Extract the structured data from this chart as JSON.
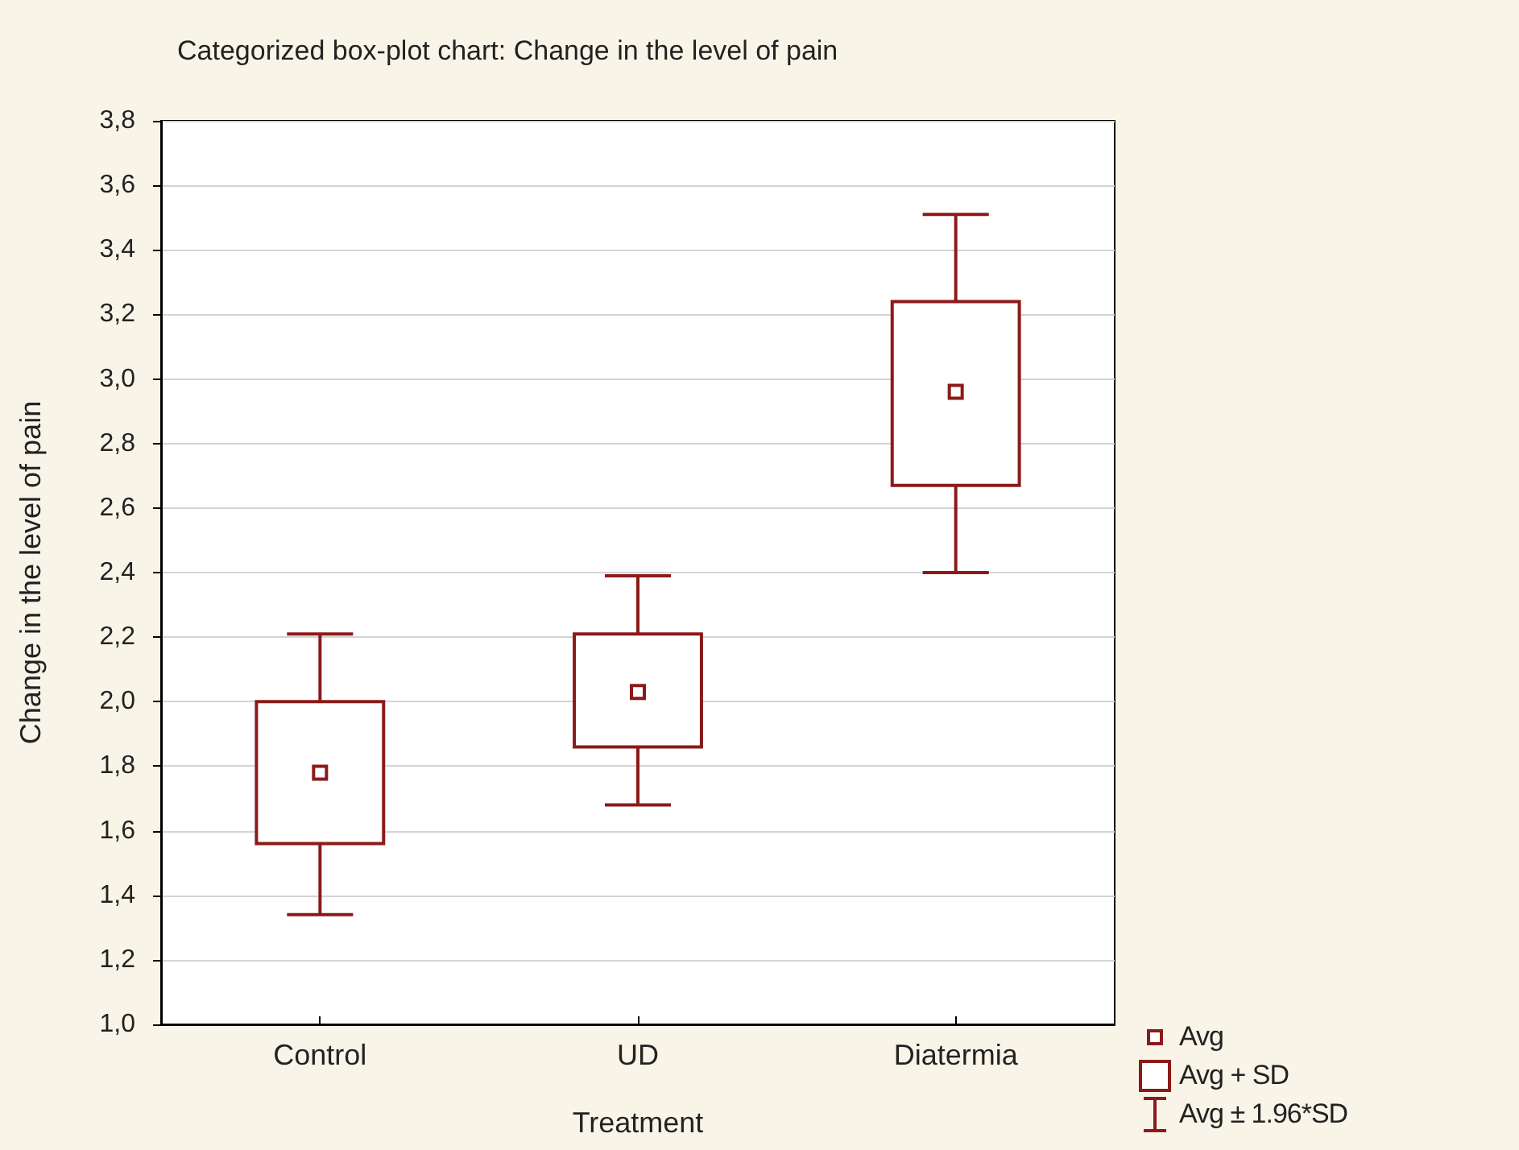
{
  "chart_data": {
    "type": "box",
    "title": "Categorized box-plot chart: Change in the level of pain",
    "xlabel": "Treatment",
    "ylabel": "Change in the level of pain",
    "categories": [
      "Control",
      "UD",
      "Diatermia"
    ],
    "boxes": [
      {
        "low": 1.34,
        "q1": 1.56,
        "median": 1.78,
        "q3": 2.0,
        "high": 2.21
      },
      {
        "low": 1.68,
        "q1": 1.86,
        "median": 2.03,
        "q3": 2.21,
        "high": 2.39
      },
      {
        "low": 2.4,
        "q1": 2.67,
        "median": 2.96,
        "q3": 3.24,
        "high": 3.51
      }
    ],
    "color": "#8b1a1a",
    "ylim": [
      1.0,
      3.8
    ],
    "yticks": [
      {
        "value": 1.0,
        "label": "1,0"
      },
      {
        "value": 1.2,
        "label": "1,2"
      },
      {
        "value": 1.4,
        "label": "1,4"
      },
      {
        "value": 1.6,
        "label": "1,6"
      },
      {
        "value": 1.8,
        "label": "1,8"
      },
      {
        "value": 2.0,
        "label": "2,0"
      },
      {
        "value": 2.2,
        "label": "2,2"
      },
      {
        "value": 2.4,
        "label": "2,4"
      },
      {
        "value": 2.6,
        "label": "2,6"
      },
      {
        "value": 2.8,
        "label": "2,8"
      },
      {
        "value": 3.0,
        "label": "3,0"
      },
      {
        "value": 3.2,
        "label": "3,2"
      },
      {
        "value": 3.4,
        "label": "3,4"
      },
      {
        "value": 3.6,
        "label": "3,6"
      },
      {
        "value": 3.8,
        "label": "3,8"
      }
    ],
    "grid": "y",
    "annotations": [
      "Avg",
      "Avg + SD",
      "Avg ± 1.96*SD"
    ]
  }
}
